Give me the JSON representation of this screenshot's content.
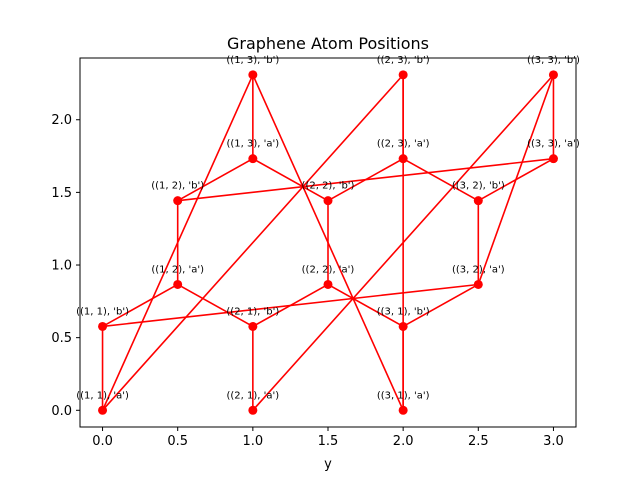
{
  "chart_data": {
    "type": "scatter",
    "title": "Graphene Atom Positions",
    "xlabel": "y",
    "ylabel": "",
    "xlim": [
      -0.15,
      3.15
    ],
    "ylim": [
      -0.115,
      2.425
    ],
    "xticks": [
      "0.0",
      "0.5",
      "1.0",
      "1.5",
      "2.0",
      "2.5",
      "3.0"
    ],
    "yticks": [
      "0.0",
      "0.5",
      "1.0",
      "1.5",
      "2.0"
    ],
    "grid": false,
    "color": "#ff0000",
    "points": [
      {
        "id": "1-1-a",
        "label": "((1, 1), 'a')",
        "x": 0.0,
        "y": 0.0
      },
      {
        "id": "1-1-b",
        "label": "((1, 1), 'b')",
        "x": 0.0,
        "y": 0.577
      },
      {
        "id": "1-2-a",
        "label": "((1, 2), 'a')",
        "x": 0.5,
        "y": 0.866
      },
      {
        "id": "1-2-b",
        "label": "((1, 2), 'b')",
        "x": 0.5,
        "y": 1.443
      },
      {
        "id": "1-3-a",
        "label": "((1, 3), 'a')",
        "x": 1.0,
        "y": 1.732
      },
      {
        "id": "1-3-b",
        "label": "((1, 3), 'b')",
        "x": 1.0,
        "y": 2.309
      },
      {
        "id": "2-1-a",
        "label": "((2, 1), 'a')",
        "x": 1.0,
        "y": 0.0
      },
      {
        "id": "2-1-b",
        "label": "((2, 1), 'b')",
        "x": 1.0,
        "y": 0.577
      },
      {
        "id": "2-2-a",
        "label": "((2, 2), 'a')",
        "x": 1.5,
        "y": 0.866
      },
      {
        "id": "2-2-b",
        "label": "((2, 2), 'b')",
        "x": 1.5,
        "y": 1.443
      },
      {
        "id": "2-3-a",
        "label": "((2, 3), 'a')",
        "x": 2.0,
        "y": 1.732
      },
      {
        "id": "2-3-b",
        "label": "((2, 3), 'b')",
        "x": 2.0,
        "y": 2.309
      },
      {
        "id": "3-1-a",
        "label": "((3, 1), 'a')",
        "x": 2.0,
        "y": 0.0
      },
      {
        "id": "3-1-b",
        "label": "((3, 1), 'b')",
        "x": 2.0,
        "y": 0.577
      },
      {
        "id": "3-2-a",
        "label": "((3, 2), 'a')",
        "x": 2.5,
        "y": 0.866
      },
      {
        "id": "3-2-b",
        "label": "((3, 2), 'b')",
        "x": 2.5,
        "y": 1.443
      },
      {
        "id": "3-3-a",
        "label": "((3, 3), 'a')",
        "x": 3.0,
        "y": 1.732
      },
      {
        "id": "3-3-b",
        "label": "((3, 3), 'b')",
        "x": 3.0,
        "y": 2.309
      }
    ],
    "edges": [
      [
        "1-1-a",
        "1-1-b"
      ],
      [
        "1-1-b",
        "1-2-a"
      ],
      [
        "1-2-a",
        "1-2-b"
      ],
      [
        "1-2-a",
        "2-1-b"
      ],
      [
        "1-3-a",
        "1-3-b"
      ],
      [
        "1-3-a",
        "1-2-b"
      ],
      [
        "1-3-a",
        "2-2-b"
      ],
      [
        "2-1-a",
        "2-1-b"
      ],
      [
        "2-1-b",
        "2-2-a"
      ],
      [
        "2-2-a",
        "2-2-b"
      ],
      [
        "2-2-b",
        "2-3-a"
      ],
      [
        "2-3-a",
        "2-3-b"
      ],
      [
        "2-2-a",
        "3-1-b"
      ],
      [
        "3-1-a",
        "3-1-b"
      ],
      [
        "3-1-b",
        "3-2-a"
      ],
      [
        "3-2-a",
        "3-2-b"
      ],
      [
        "3-2-b",
        "3-3-a"
      ],
      [
        "3-3-a",
        "3-3-b"
      ],
      [
        "2-3-a",
        "3-2-b"
      ],
      [
        "1-1-a",
        "1-3-b"
      ],
      [
        "1-3-b",
        "3-1-a"
      ],
      [
        "1-1-a",
        "2-3-b"
      ],
      [
        "2-3-b",
        "3-1-a"
      ],
      [
        "1-1-b",
        "3-2-a"
      ],
      [
        "1-2-b",
        "3-3-a"
      ],
      [
        "2-1-a",
        "3-3-b"
      ],
      [
        "3-3-b",
        "3-2-a"
      ]
    ]
  }
}
